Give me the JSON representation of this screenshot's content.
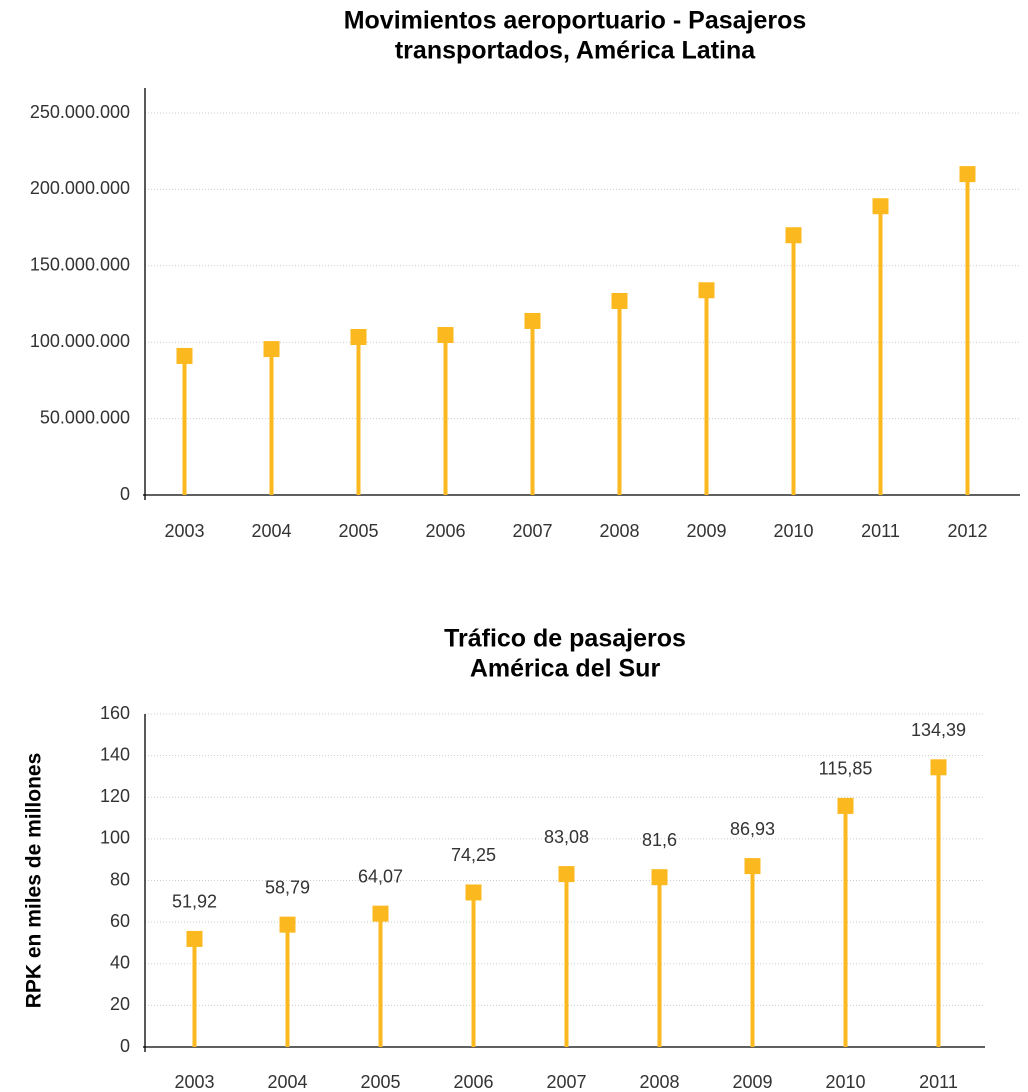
{
  "chart_data": [
    {
      "type": "lollipop",
      "title": [
        "Movimientos aeroportuario - Pasajeros",
        "transportados, América Latina"
      ],
      "categories": [
        "2003",
        "2004",
        "2005",
        "2006",
        "2007",
        "2008",
        "2009",
        "2010",
        "2011",
        "2012"
      ],
      "values": [
        91000000,
        95500000,
        103400000,
        104700000,
        113900000,
        127000000,
        134000000,
        170000000,
        189000000,
        210000000
      ],
      "color": "#fbb91f",
      "ylim": [
        0,
        250000000
      ],
      "yticks": [
        0,
        {
          "value": 50000000,
          "label": "50.000.000"
        },
        {
          "value": 100000000,
          "label": "100.000.000"
        },
        {
          "value": 150000000,
          "label": "150.000.000"
        },
        {
          "value": 200000000,
          "label": "200.000.000"
        },
        {
          "value": 250000000,
          "label": "250.000.000"
        }
      ],
      "grid": true
    },
    {
      "type": "lollipop",
      "title": [
        "Tráfico de pasajeros",
        "América del Sur"
      ],
      "ylabel": "RPK en miles de millones",
      "categories": [
        "2003",
        "2004",
        "2005",
        "2006",
        "2007",
        "2008",
        "2009",
        "2010",
        "2011"
      ],
      "values": [
        51.92,
        58.79,
        64.07,
        74.25,
        83.08,
        81.6,
        86.93,
        115.85,
        134.39
      ],
      "value_labels": [
        "51,92",
        "58,79",
        "64,07",
        "74,25",
        "83,08",
        "81,6",
        "86,93",
        "115,85",
        "134,39"
      ],
      "color": "#fbb91f",
      "ylim": [
        0,
        160
      ],
      "yticks": [
        0,
        20,
        40,
        60,
        80,
        100,
        120,
        140,
        160
      ],
      "grid": true
    }
  ]
}
